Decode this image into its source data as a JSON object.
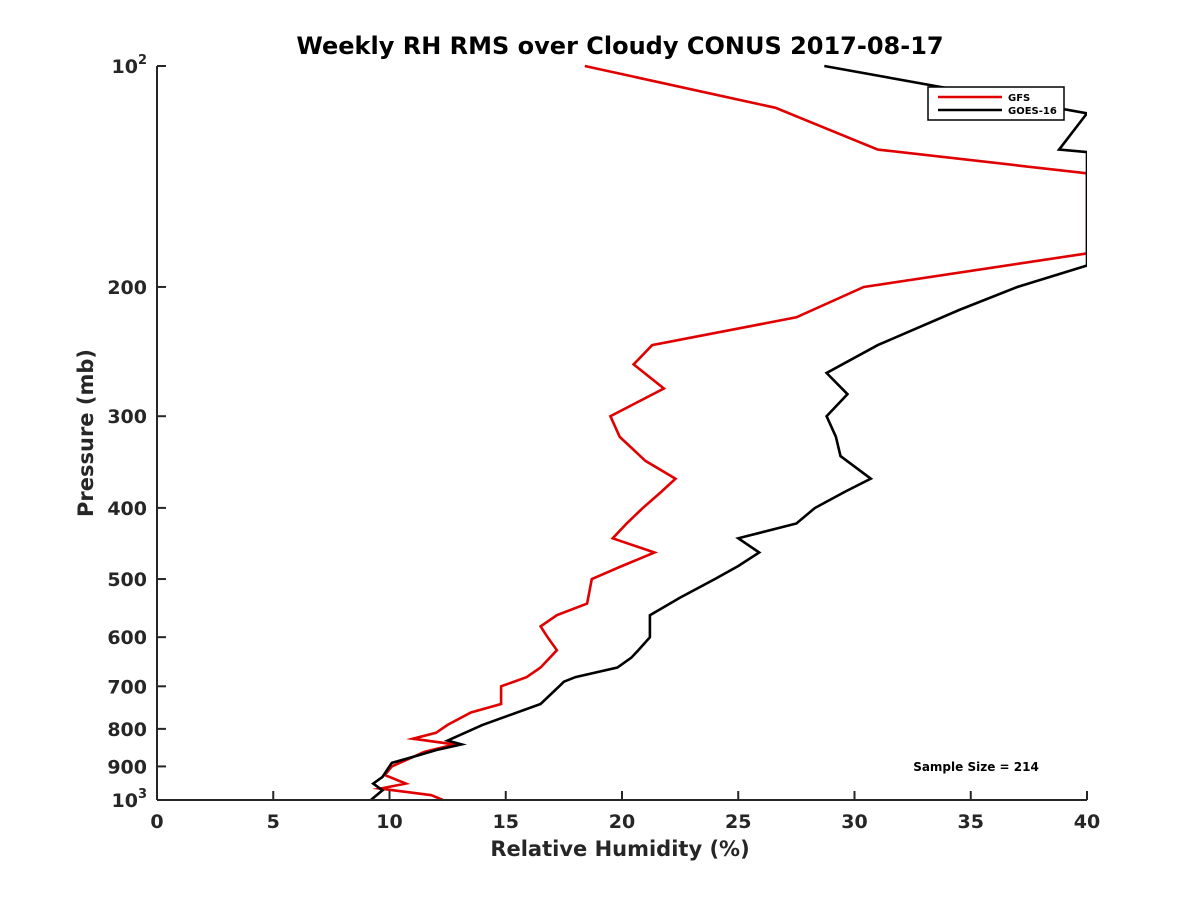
{
  "chart_data": {
    "type": "line",
    "title": "Weekly RH RMS over Cloudy CONUS 2017-08-17",
    "xlabel": "Relative Humidity (%)",
    "ylabel": "Pressure (mb)",
    "xlim": [
      0,
      40
    ],
    "ylim": [
      100,
      1000
    ],
    "y_scale": "log",
    "y_reversed": true,
    "grid": false,
    "legend_position": "top-right",
    "x_ticks": [
      0,
      5,
      10,
      15,
      20,
      25,
      30,
      35,
      40
    ],
    "y_ticks": [
      {
        "value": 100,
        "base": "10",
        "exp": "2"
      },
      {
        "value": 200,
        "label": "200"
      },
      {
        "value": 300,
        "label": "300"
      },
      {
        "value": 400,
        "label": "400"
      },
      {
        "value": 500,
        "label": "500"
      },
      {
        "value": 600,
        "label": "600"
      },
      {
        "value": 700,
        "label": "700"
      },
      {
        "value": 800,
        "label": "800"
      },
      {
        "value": 900,
        "label": "900"
      },
      {
        "value": 1000,
        "base": "10",
        "exp": "3"
      }
    ],
    "annotation": "Sample Size = 214",
    "series": [
      {
        "name": "GFS",
        "color": "#e00000",
        "points": [
          [
            18.4,
            100
          ],
          [
            26.6,
            114
          ],
          [
            31.0,
            130
          ],
          [
            40.0,
            140
          ],
          [
            40.0,
            180
          ],
          [
            30.4,
            200
          ],
          [
            27.5,
            220
          ],
          [
            21.3,
            240
          ],
          [
            20.5,
            255
          ],
          [
            21.8,
            275
          ],
          [
            19.5,
            300
          ],
          [
            19.9,
            320
          ],
          [
            21.0,
            345
          ],
          [
            22.3,
            365
          ],
          [
            21.7,
            380
          ],
          [
            20.9,
            400
          ],
          [
            20.2,
            420
          ],
          [
            19.6,
            440
          ],
          [
            21.4,
            460
          ],
          [
            20.0,
            480
          ],
          [
            18.7,
            500
          ],
          [
            18.5,
            540
          ],
          [
            17.2,
            560
          ],
          [
            16.5,
            580
          ],
          [
            16.8,
            600
          ],
          [
            17.2,
            625
          ],
          [
            16.5,
            660
          ],
          [
            15.9,
            680
          ],
          [
            14.8,
            700
          ],
          [
            14.8,
            740
          ],
          [
            13.5,
            760
          ],
          [
            12.5,
            790
          ],
          [
            12.0,
            810
          ],
          [
            11.0,
            825
          ],
          [
            12.8,
            840
          ],
          [
            11.5,
            860
          ],
          [
            10.1,
            900
          ],
          [
            9.8,
            925
          ],
          [
            10.7,
            950
          ],
          [
            9.6,
            965
          ],
          [
            11.8,
            985
          ],
          [
            12.3,
            1000
          ]
        ]
      },
      {
        "name": "GOES-16",
        "color": "#000000",
        "points": [
          [
            28.7,
            100
          ],
          [
            40.0,
            116
          ],
          [
            38.8,
            130
          ],
          [
            40.0,
            131
          ],
          [
            40.0,
            187
          ],
          [
            37.0,
            200
          ],
          [
            34.5,
            215
          ],
          [
            31.0,
            240
          ],
          [
            28.8,
            262
          ],
          [
            29.7,
            280
          ],
          [
            28.8,
            300
          ],
          [
            29.2,
            320
          ],
          [
            29.4,
            340
          ],
          [
            30.7,
            365
          ],
          [
            29.6,
            380
          ],
          [
            28.3,
            400
          ],
          [
            27.5,
            420
          ],
          [
            25.0,
            440
          ],
          [
            25.9,
            460
          ],
          [
            25.0,
            480
          ],
          [
            24.0,
            500
          ],
          [
            22.5,
            530
          ],
          [
            21.2,
            560
          ],
          [
            21.2,
            580
          ],
          [
            21.2,
            600
          ],
          [
            20.7,
            625
          ],
          [
            20.4,
            640
          ],
          [
            19.8,
            660
          ],
          [
            18.0,
            680
          ],
          [
            17.5,
            690
          ],
          [
            17.3,
            700
          ],
          [
            16.5,
            740
          ],
          [
            14.0,
            790
          ],
          [
            12.5,
            830
          ],
          [
            13.1,
            840
          ],
          [
            12.0,
            855
          ],
          [
            11.2,
            870
          ],
          [
            10.1,
            890
          ],
          [
            9.7,
            930
          ],
          [
            9.3,
            950
          ],
          [
            9.7,
            970
          ],
          [
            9.2,
            1000
          ]
        ]
      }
    ]
  }
}
